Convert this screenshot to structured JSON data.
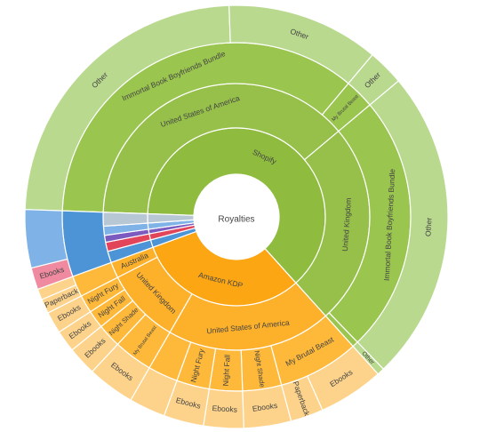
{
  "chart_data": {
    "type": "sunburst",
    "root_label": "Royalties",
    "colors": {
      "shopify_ring1": "#8fbc3f",
      "shopify_ring2": "#96c04a",
      "shopify_ring3": "#9ac54f",
      "shopify_outer": "#b9d98f",
      "kdp_ring1": "#fca614",
      "kdp_ring2": "#fdb02a",
      "kdp_ring3": "#feb83a",
      "kdp_outer": "#fdd38b",
      "misc_blue": "#4d94d6",
      "misc_lightblue": "#7fb3e8",
      "misc_purple": "#7b5bbf",
      "misc_red": "#e2455a",
      "misc_pink": "#f08aa0",
      "misc_gray": "#b8c7d4"
    },
    "segments": [
      {
        "ring": 1,
        "a0": -88,
        "a1": 138,
        "label": "Shopify",
        "c": "shopify_ring1"
      },
      {
        "ring": 1,
        "a0": 138,
        "a1": 250,
        "label": "Amazon KDP",
        "c": "kdp_ring1"
      },
      {
        "ring": 1,
        "a0": 250,
        "a1": 255,
        "label": "",
        "c": "misc_blue"
      },
      {
        "ring": 1,
        "a0": 255,
        "a1": 259,
        "label": "",
        "c": "misc_red"
      },
      {
        "ring": 1,
        "a0": 259,
        "a1": 262,
        "label": "",
        "c": "misc_purple"
      },
      {
        "ring": 1,
        "a0": 262,
        "a1": 266,
        "label": "",
        "c": "misc_lightblue"
      },
      {
        "ring": 1,
        "a0": 266,
        "a1": 272,
        "label": "",
        "c": "misc_gray"
      },
      {
        "ring": 2,
        "a0": -88,
        "a1": 50,
        "label": "United States of America",
        "c": "shopify_ring2"
      },
      {
        "ring": 2,
        "a0": 50,
        "a1": 138,
        "label": "United Kingdom",
        "c": "shopify_ring2"
      },
      {
        "ring": 2,
        "a0": 138,
        "a1": 210,
        "label": "United States of America",
        "c": "kdp_ring2"
      },
      {
        "ring": 2,
        "a0": 210,
        "a1": 243,
        "label": "United Kingdom",
        "c": "kdp_ring2"
      },
      {
        "ring": 2,
        "a0": 243,
        "a1": 250,
        "label": "Australia",
        "c": "kdp_ring2"
      },
      {
        "ring": 2,
        "a0": 250,
        "a1": 255,
        "label": "",
        "c": "misc_blue"
      },
      {
        "ring": 2,
        "a0": 255,
        "a1": 259,
        "label": "",
        "c": "misc_red"
      },
      {
        "ring": 2,
        "a0": 259,
        "a1": 262,
        "label": "",
        "c": "misc_purple"
      },
      {
        "ring": 2,
        "a0": 262,
        "a1": 266,
        "label": "",
        "c": "misc_lightblue"
      },
      {
        "ring": 2,
        "a0": 266,
        "a1": 272,
        "label": "",
        "c": "misc_gray"
      },
      {
        "ring": 3,
        "a0": -88,
        "a1": 40,
        "label": "Immortal Book Boyfriends Bundle",
        "c": "shopify_ring3"
      },
      {
        "ring": 3,
        "a0": 40,
        "a1": 50,
        "label": "My Brutal Beast",
        "c": "shopify_ring3"
      },
      {
        "ring": 3,
        "a0": 50,
        "a1": 136,
        "label": "Immortal Book Boyfriends Bundle",
        "c": "shopify_ring3"
      },
      {
        "ring": 3,
        "a0": 136,
        "a1": 138,
        "label": "",
        "c": "shopify_ring3"
      },
      {
        "ring": 3,
        "a0": 138,
        "a1": 165,
        "label": "My Brutal Beast",
        "c": "kdp_ring3"
      },
      {
        "ring": 3,
        "a0": 165,
        "a1": 178,
        "label": "Night Shade",
        "c": "kdp_ring3"
      },
      {
        "ring": 3,
        "a0": 178,
        "a1": 189,
        "label": "Night Fall",
        "c": "kdp_ring3"
      },
      {
        "ring": 3,
        "a0": 189,
        "a1": 200,
        "label": "Night Fury",
        "c": "kdp_ring3"
      },
      {
        "ring": 3,
        "a0": 200,
        "a1": 210,
        "label": "",
        "c": "kdp_ring3"
      },
      {
        "ring": 3,
        "a0": 210,
        "a1": 223,
        "label": "My Brutal Beast",
        "c": "kdp_ring3"
      },
      {
        "ring": 3,
        "a0": 223,
        "a1": 231,
        "label": "Night Shade",
        "c": "kdp_ring3"
      },
      {
        "ring": 3,
        "a0": 231,
        "a1": 237,
        "label": "Night Fall",
        "c": "kdp_ring3"
      },
      {
        "ring": 3,
        "a0": 237,
        "a1": 243,
        "label": "Night Fury",
        "c": "kdp_ring3"
      },
      {
        "ring": 3,
        "a0": 243,
        "a1": 250,
        "label": "",
        "c": "kdp_ring3"
      },
      {
        "ring": 3,
        "a0": 250,
        "a1": 272,
        "label": "",
        "c": "misc_blue"
      },
      {
        "ring": 4,
        "a0": -88,
        "a1": -2,
        "label": "Other",
        "c": "shopify_outer"
      },
      {
        "ring": 4,
        "a0": -2,
        "a1": 40,
        "label": "Other",
        "c": "shopify_outer"
      },
      {
        "ring": 4,
        "a0": 40,
        "a1": 50,
        "label": "Other",
        "c": "shopify_outer"
      },
      {
        "ring": 4,
        "a0": 50,
        "a1": 136,
        "label": "Other",
        "c": "shopify_outer"
      },
      {
        "ring": 4,
        "a0": 136,
        "a1": 138,
        "label": "Other",
        "c": "shopify_outer"
      },
      {
        "ring": 4,
        "a0": 138,
        "a1": 156,
        "label": "Ebooks",
        "c": "kdp_outer"
      },
      {
        "ring": 4,
        "a0": 156,
        "a1": 165,
        "label": "Paperback",
        "c": "kdp_outer"
      },
      {
        "ring": 4,
        "a0": 165,
        "a1": 178,
        "label": "Ebooks",
        "c": "kdp_outer"
      },
      {
        "ring": 4,
        "a0": 178,
        "a1": 189,
        "label": "Ebooks",
        "c": "kdp_outer"
      },
      {
        "ring": 4,
        "a0": 189,
        "a1": 200,
        "label": "Ebooks",
        "c": "kdp_outer"
      },
      {
        "ring": 4,
        "a0": 200,
        "a1": 210,
        "label": "",
        "c": "kdp_outer"
      },
      {
        "ring": 4,
        "a0": 210,
        "a1": 223,
        "label": "Ebooks",
        "c": "kdp_outer"
      },
      {
        "ring": 4,
        "a0": 223,
        "a1": 231,
        "label": "Ebooks",
        "c": "kdp_outer"
      },
      {
        "ring": 4,
        "a0": 231,
        "a1": 237,
        "label": "Ebooks",
        "c": "kdp_outer"
      },
      {
        "ring": 4,
        "a0": 237,
        "a1": 243,
        "label": "Ebooks",
        "c": "kdp_outer"
      },
      {
        "ring": 4,
        "a0": 243,
        "a1": 247,
        "label": "Paperback",
        "c": "kdp_outer"
      },
      {
        "ring": 4,
        "a0": 247,
        "a1": 250,
        "label": "",
        "c": "kdp_outer"
      },
      {
        "ring": 4,
        "a0": 250,
        "a1": 256,
        "label": "Ebooks",
        "c": "misc_pink"
      },
      {
        "ring": 4,
        "a0": 256,
        "a1": 272,
        "label": "",
        "c": "misc_lightblue"
      }
    ]
  }
}
